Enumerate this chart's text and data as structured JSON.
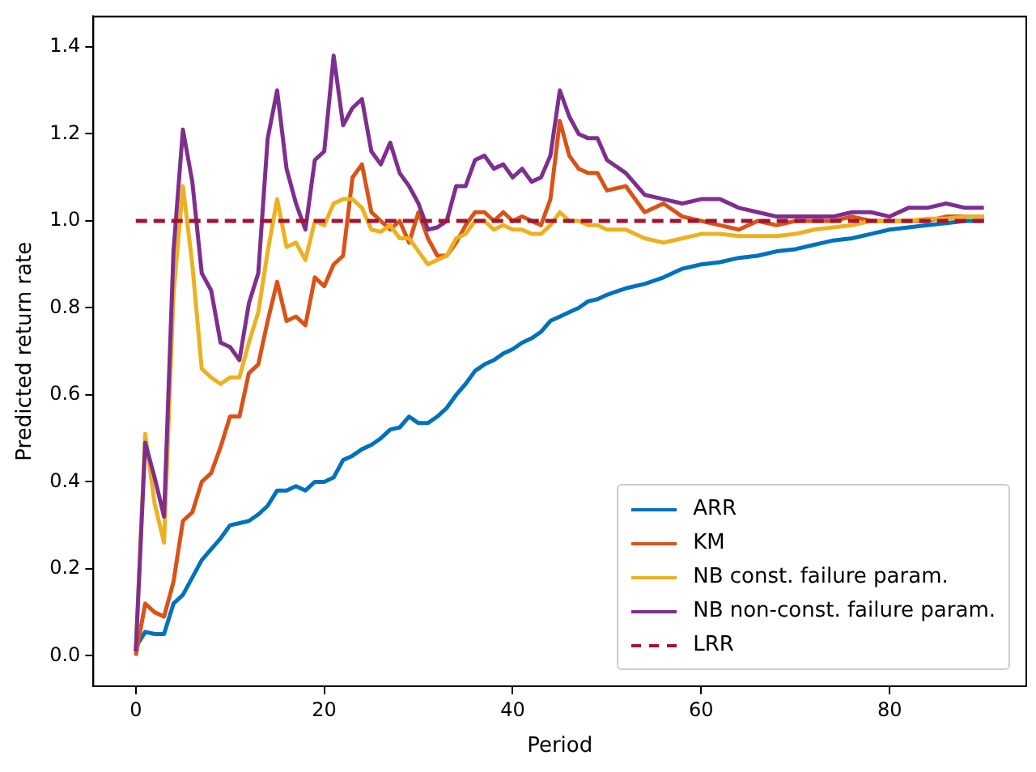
{
  "chart_data": {
    "type": "line",
    "xlabel": "Period",
    "ylabel": "Predicted return rate",
    "x": [
      0,
      1,
      2,
      3,
      4,
      5,
      6,
      7,
      8,
      9,
      10,
      11,
      12,
      13,
      14,
      15,
      16,
      17,
      18,
      19,
      20,
      21,
      22,
      23,
      24,
      25,
      26,
      27,
      28,
      29,
      30,
      31,
      32,
      33,
      34,
      35,
      36,
      37,
      38,
      39,
      40,
      41,
      42,
      43,
      44,
      45,
      46,
      47,
      48,
      49,
      50,
      52,
      54,
      56,
      58,
      60,
      62,
      64,
      66,
      68,
      70,
      72,
      74,
      76,
      78,
      80,
      82,
      84,
      86,
      88,
      90
    ],
    "series": [
      {
        "name": "ARR",
        "color": "#0072bd",
        "values": [
          0.02,
          0.055,
          0.05,
          0.05,
          0.12,
          0.14,
          0.18,
          0.22,
          0.245,
          0.27,
          0.3,
          0.305,
          0.31,
          0.325,
          0.345,
          0.38,
          0.38,
          0.39,
          0.38,
          0.4,
          0.4,
          0.41,
          0.45,
          0.46,
          0.475,
          0.485,
          0.5,
          0.52,
          0.525,
          0.55,
          0.535,
          0.535,
          0.55,
          0.57,
          0.6,
          0.625,
          0.655,
          0.67,
          0.68,
          0.695,
          0.705,
          0.72,
          0.73,
          0.745,
          0.77,
          0.78,
          0.79,
          0.8,
          0.815,
          0.82,
          0.83,
          0.845,
          0.855,
          0.87,
          0.89,
          0.9,
          0.905,
          0.915,
          0.92,
          0.93,
          0.935,
          0.945,
          0.955,
          0.96,
          0.97,
          0.98,
          0.985,
          0.99,
          0.995,
          1.0,
          1.0
        ]
      },
      {
        "name": "KM",
        "color": "#d95319",
        "values": [
          0.0,
          0.12,
          0.1,
          0.09,
          0.17,
          0.31,
          0.33,
          0.4,
          0.42,
          0.48,
          0.55,
          0.55,
          0.65,
          0.67,
          0.77,
          0.86,
          0.77,
          0.78,
          0.76,
          0.87,
          0.85,
          0.9,
          0.92,
          1.1,
          1.13,
          1.02,
          1.0,
          0.98,
          1.0,
          0.95,
          1.02,
          0.96,
          0.92,
          0.92,
          0.95,
          0.99,
          1.02,
          1.02,
          1.0,
          1.02,
          1.0,
          1.01,
          1.0,
          0.99,
          1.05,
          1.23,
          1.15,
          1.12,
          1.11,
          1.11,
          1.07,
          1.08,
          1.02,
          1.04,
          1.01,
          1.0,
          0.99,
          0.98,
          1.0,
          0.99,
          1.0,
          1.0,
          1.0,
          1.01,
          1.0,
          1.0,
          1.0,
          1.0,
          1.01,
          1.01,
          1.01
        ]
      },
      {
        "name": "NB const. failure param.",
        "color": "#edb120",
        "values": [
          0.01,
          0.51,
          0.35,
          0.26,
          0.83,
          1.08,
          0.9,
          0.66,
          0.64,
          0.625,
          0.64,
          0.64,
          0.72,
          0.79,
          0.93,
          1.05,
          0.94,
          0.95,
          0.91,
          1.0,
          0.99,
          1.04,
          1.05,
          1.05,
          1.03,
          0.98,
          0.975,
          0.99,
          0.96,
          0.96,
          0.93,
          0.9,
          0.91,
          0.92,
          0.96,
          0.97,
          1.0,
          1.0,
          0.98,
          0.99,
          0.98,
          0.98,
          0.97,
          0.97,
          0.99,
          1.02,
          1.0,
          1.0,
          0.99,
          0.99,
          0.98,
          0.98,
          0.96,
          0.95,
          0.96,
          0.97,
          0.97,
          0.965,
          0.965,
          0.965,
          0.97,
          0.98,
          0.985,
          0.99,
          1.0,
          1.0,
          1.0,
          1.005,
          1.005,
          1.01,
          1.01
        ]
      },
      {
        "name": "NB non-const. failure param.",
        "color": "#7e2f8e",
        "values": [
          0.01,
          0.49,
          0.41,
          0.32,
          0.93,
          1.21,
          1.09,
          0.88,
          0.84,
          0.72,
          0.71,
          0.68,
          0.81,
          0.88,
          1.19,
          1.3,
          1.12,
          1.04,
          0.98,
          1.14,
          1.16,
          1.38,
          1.22,
          1.26,
          1.28,
          1.16,
          1.13,
          1.18,
          1.11,
          1.08,
          1.04,
          0.98,
          0.985,
          1.0,
          1.08,
          1.08,
          1.14,
          1.15,
          1.12,
          1.13,
          1.1,
          1.12,
          1.09,
          1.1,
          1.15,
          1.3,
          1.24,
          1.2,
          1.19,
          1.19,
          1.14,
          1.11,
          1.06,
          1.05,
          1.04,
          1.05,
          1.05,
          1.03,
          1.02,
          1.01,
          1.01,
          1.01,
          1.01,
          1.02,
          1.02,
          1.01,
          1.03,
          1.03,
          1.04,
          1.03,
          1.03
        ]
      },
      {
        "name": "LRR",
        "color": "#a2142f",
        "line_style": "dashed",
        "x": [
          0,
          90
        ],
        "values": [
          1,
          1
        ]
      }
    ],
    "xlim": [
      -4.5,
      94.5
    ],
    "ylim": [
      -0.07,
      1.47
    ],
    "xticks": [
      0,
      20,
      40,
      60,
      80
    ],
    "yticks": [
      {
        "value": 0,
        "label": "0.0"
      },
      {
        "value": 0.2,
        "label": "0.2"
      },
      {
        "value": 0.4,
        "label": "0.4"
      },
      {
        "value": 0.6,
        "label": "0.6"
      },
      {
        "value": 0.8,
        "label": "0.8"
      },
      {
        "value": 1.0,
        "label": "1.0"
      },
      {
        "value": 1.2,
        "label": "1.2"
      },
      {
        "value": 1.4,
        "label": "1.4"
      }
    ],
    "grid": false,
    "legend": "bottom right",
    "marker": "none",
    "line_style": "solid"
  }
}
